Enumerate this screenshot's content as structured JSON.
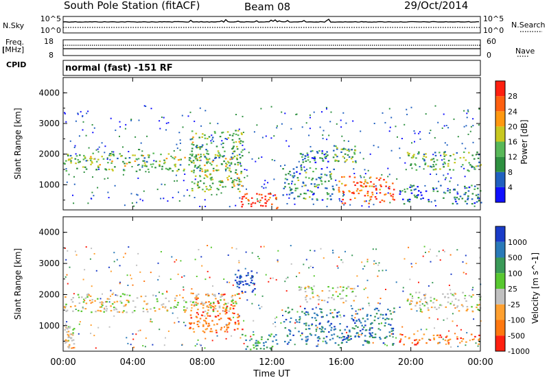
{
  "header": {
    "station": "South Pole Station (fitACF)",
    "beam": "Beam 08",
    "date": "29/Oct/2014"
  },
  "side_labels": {
    "nsky": "N.Sky",
    "nsearch": "N.Search",
    "freq": "Freq.",
    "freq_unit": "[MHz]",
    "nave": "Nave",
    "cpid": "CPID"
  },
  "mode_text": "normal (fast) -151 RF",
  "chart_data": [
    {
      "type": "line",
      "panel": "noise",
      "left_ticks": [
        "10^5",
        "10^0"
      ],
      "right_ticks": [
        "10^5",
        "10^0"
      ],
      "series": [
        {
          "name": "N.Sky",
          "style": "solid"
        },
        {
          "name": "N.Search",
          "style": "dotted"
        }
      ]
    },
    {
      "type": "line",
      "panel": "frequency",
      "left_ticks": [
        "18",
        "8"
      ],
      "right_ticks": [
        "60",
        "0"
      ],
      "series": [
        {
          "name": "Freq.",
          "style": "solid"
        },
        {
          "name": "Nave",
          "style": "dotted"
        }
      ]
    },
    {
      "type": "heatmap",
      "panel": "power",
      "ylabel": "Slant Range [km]",
      "ylim": [
        180,
        4500
      ],
      "yticks": [
        "1000",
        "2000",
        "3000",
        "4000"
      ],
      "colorbar_label": "Power [dB]",
      "colorbar_ticks": [
        "4",
        "8",
        "12",
        "16",
        "20",
        "24",
        "28"
      ],
      "colorbar_colors": [
        "#1010ff",
        "#2060c0",
        "#2e9040",
        "#58b858",
        "#c8c820",
        "#ff9810",
        "#ff6010",
        "#ff2010"
      ],
      "clim": [
        0,
        32
      ],
      "features": [
        {
          "t": [
            0.0,
            10.0
          ],
          "range": [
            1450,
            2050
          ],
          "level": 14
        },
        {
          "t": [
            13.5,
            15.2
          ],
          "range": [
            1750,
            2150
          ],
          "level": 8
        },
        {
          "t": [
            15.5,
            16.8
          ],
          "range": [
            1750,
            2300
          ],
          "level": 12
        },
        {
          "t": [
            19.7,
            24.0
          ],
          "range": [
            1450,
            2100
          ],
          "level": 12
        },
        {
          "t": [
            10.2,
            12.3
          ],
          "range": [
            250,
            750
          ],
          "level": 30
        },
        {
          "t": [
            15.8,
            19.0
          ],
          "range": [
            400,
            1300
          ],
          "level": 26
        },
        {
          "t": [
            7.2,
            10.3
          ],
          "range": [
            800,
            2800
          ],
          "level": 14
        },
        {
          "t": [
            12.6,
            15.6
          ],
          "range": [
            500,
            1600
          ],
          "level": 10
        },
        {
          "t": [
            19.3,
            24.0
          ],
          "range": [
            400,
            1000
          ],
          "level": 8
        }
      ]
    },
    {
      "type": "heatmap",
      "panel": "velocity",
      "ylabel": "Slant Range [km]",
      "ylim": [
        180,
        4500
      ],
      "yticks": [
        "1000",
        "2000",
        "3000",
        "4000"
      ],
      "colorbar_label": "Velocity [m s^-1]",
      "colorbar_ticks": [
        "1000",
        "500",
        "100",
        "25",
        "-25",
        "-100",
        "-500",
        "-1000"
      ],
      "colorbar_colors": [
        "#1a3cc8",
        "#2a7ab8",
        "#3a9a58",
        "#58c830",
        "#c0c0c0",
        "#ffa030",
        "#ff7810",
        "#ff2010"
      ],
      "features": [
        {
          "t": [
            0.0,
            10.0
          ],
          "range": [
            1450,
            2050
          ],
          "class": 4
        },
        {
          "t": [
            13.5,
            16.8
          ],
          "range": [
            1750,
            2300
          ],
          "class": 4
        },
        {
          "t": [
            19.7,
            24.0
          ],
          "range": [
            1450,
            2100
          ],
          "class": 4
        },
        {
          "t": [
            7.2,
            10.3
          ],
          "range": [
            800,
            2100
          ],
          "class": 6
        },
        {
          "t": [
            9.8,
            11.0
          ],
          "range": [
            2100,
            2800
          ],
          "class": 0
        },
        {
          "t": [
            10.2,
            12.3
          ],
          "range": [
            250,
            750
          ],
          "class": 2
        },
        {
          "t": [
            12.6,
            19.0
          ],
          "range": [
            400,
            1600
          ],
          "class": 1
        },
        {
          "t": [
            19.3,
            24.0
          ],
          "range": [
            400,
            750
          ],
          "class": 6
        },
        {
          "t": [
            0.0,
            0.6
          ],
          "range": [
            300,
            1000
          ],
          "class": 4
        }
      ]
    }
  ],
  "xaxis": {
    "ticks": [
      "00:00",
      "04:00",
      "08:00",
      "12:00",
      "16:00",
      "20:00",
      "00:00"
    ],
    "title": "Time UT",
    "range_hours": [
      0,
      24
    ]
  },
  "icons": {
    "colorbar": "colorbar-icon"
  }
}
